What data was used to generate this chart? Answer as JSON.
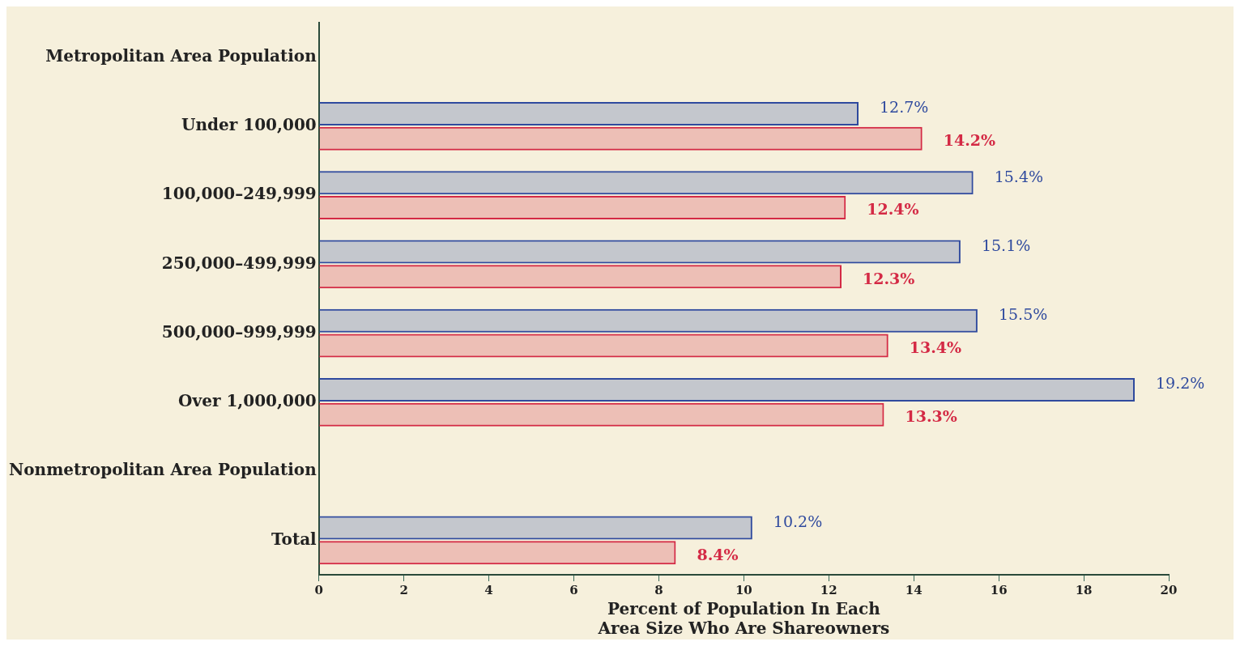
{
  "chart_data": {
    "type": "bar",
    "orientation": "horizontal",
    "categories": [
      "Metropolitan Area Population",
      "Under 100,000",
      "100,000–249,999",
      "250,000–499,999",
      "500,000–999,999",
      "Over 1,000,000",
      "Nonmetropolitan Area Population",
      "Total"
    ],
    "series": [
      {
        "color": "#2f4a9e",
        "values": [
          null,
          12.7,
          15.4,
          15.1,
          15.5,
          19.2,
          null,
          10.2
        ],
        "value_labels": [
          null,
          "12.7%",
          "15.4%",
          "15.1%",
          "15.5%",
          "19.2%",
          null,
          "10.2%"
        ]
      },
      {
        "color": "#d42a45",
        "values": [
          null,
          14.2,
          12.4,
          12.3,
          13.4,
          13.3,
          null,
          8.4
        ],
        "value_labels": [
          null,
          "14.2%",
          "12.4%",
          "12.3%",
          "13.4%",
          "13.3%",
          null,
          "8.4%"
        ]
      }
    ],
    "xlim": [
      0,
      20
    ],
    "xticks": [
      0,
      2,
      4,
      6,
      8,
      10,
      12,
      14,
      16,
      18,
      20
    ],
    "xlabel": "Percent of Population In Each\nArea Size Who Are Shareowners",
    "grid": false,
    "legend": false
  }
}
